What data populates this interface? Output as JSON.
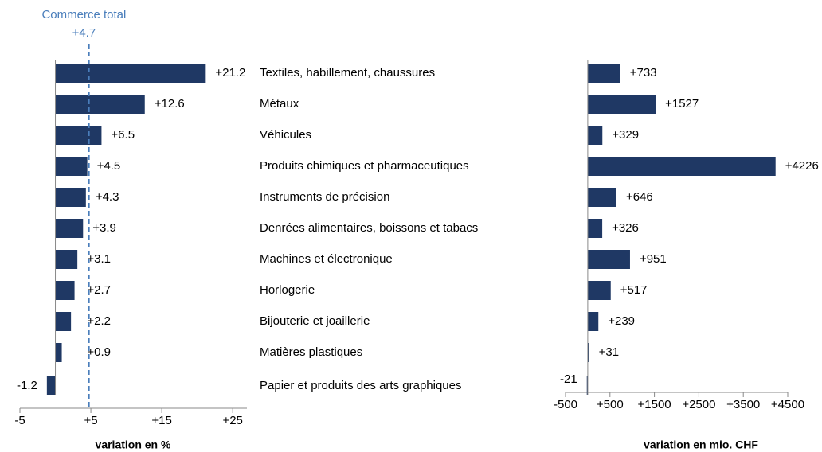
{
  "chart_data": [
    {
      "type": "bar",
      "orientation": "horizontal",
      "categories": [
        "Textiles, habillement, chaussures",
        "Métaux",
        "Véhicules",
        "Produits chimiques et pharmaceutiques",
        "Instruments de précision",
        "Denrées alimentaires, boissons et tabacs",
        "Machines et électronique",
        "Horlogerie",
        "Bijouterie et joaillerie",
        "Matières plastiques",
        "Papier et produits des arts graphiques"
      ],
      "values": [
        21.2,
        12.6,
        6.5,
        4.5,
        4.3,
        3.9,
        3.1,
        2.7,
        2.2,
        0.9,
        -1.2
      ],
      "value_labels": [
        "+21.2",
        "+12.6",
        "+6.5",
        "+4.5",
        "+4.3",
        "+3.9",
        "+3.1",
        "+2.7",
        "+2.2",
        "+0.9",
        "-1.2"
      ],
      "color": "#1f3864",
      "xlim": [
        -5,
        27
      ],
      "xticks": [
        -5,
        {
          "value": 5,
          "label": "+5"
        },
        {
          "value": 15,
          "label": "+15"
        },
        {
          "value": 25,
          "label": "+25"
        }
      ],
      "xlabel": "variation en %",
      "reference": {
        "label": "Commerce total",
        "value": 4.7,
        "value_label": "+4.7",
        "color": "#4a7ebb"
      }
    },
    {
      "type": "bar",
      "orientation": "horizontal",
      "values": [
        733,
        1527,
        329,
        4226,
        646,
        326,
        951,
        517,
        239,
        31,
        -21
      ],
      "value_labels": [
        "+733",
        "+1527",
        "+329",
        "+4226",
        "+646",
        "+326",
        "+951",
        "+517",
        "+239",
        "+31",
        "-21"
      ],
      "color": "#1f3864",
      "xlim": [
        -500,
        4500
      ],
      "xticks": [
        -500,
        {
          "value": 500,
          "label": "+500"
        },
        {
          "value": 1500,
          "label": "+1500"
        },
        {
          "value": 2500,
          "label": "+2500"
        },
        {
          "value": 3500,
          "label": "+3500"
        },
        {
          "value": 4500,
          "label": "+4500"
        }
      ],
      "xlabel": "variation en mio. CHF"
    }
  ]
}
